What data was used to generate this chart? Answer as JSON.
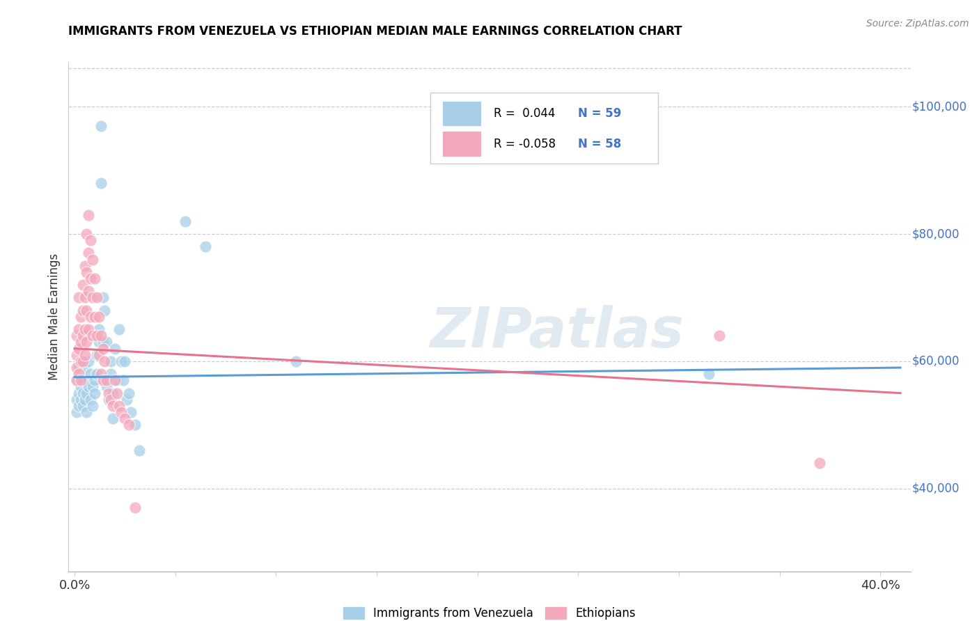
{
  "title": "IMMIGRANTS FROM VENEZUELA VS ETHIOPIAN MEDIAN MALE EARNINGS CORRELATION CHART",
  "source": "Source: ZipAtlas.com",
  "ylabel": "Median Male Earnings",
  "ylabel_right_ticks": [
    "$40,000",
    "$60,000",
    "$80,000",
    "$100,000"
  ],
  "ylabel_right_vals": [
    40000,
    60000,
    80000,
    100000
  ],
  "ylim": [
    27000,
    107000
  ],
  "xlim": [
    -0.003,
    0.415
  ],
  "legend_label1": "Immigrants from Venezuela",
  "legend_label2": "Ethiopians",
  "color_blue": "#a8cfe8",
  "color_pink": "#f4a8bb",
  "color_blue_line": "#5b9bd5",
  "color_pink_line": "#e8728a",
  "color_blue_text": "#4472c4",
  "watermark": "ZIPatlas",
  "scatter_venezuela": [
    [
      0.001,
      57000
    ],
    [
      0.001,
      54000
    ],
    [
      0.001,
      52000
    ],
    [
      0.002,
      59000
    ],
    [
      0.002,
      55000
    ],
    [
      0.002,
      57000
    ],
    [
      0.002,
      53000
    ],
    [
      0.003,
      56000
    ],
    [
      0.003,
      58000
    ],
    [
      0.003,
      54000
    ],
    [
      0.003,
      60000
    ],
    [
      0.004,
      55000
    ],
    [
      0.004,
      57000
    ],
    [
      0.004,
      53000
    ],
    [
      0.005,
      59000
    ],
    [
      0.005,
      54000
    ],
    [
      0.005,
      57000
    ],
    [
      0.006,
      55000
    ],
    [
      0.006,
      52000
    ],
    [
      0.007,
      60000
    ],
    [
      0.007,
      56000
    ],
    [
      0.008,
      58000
    ],
    [
      0.008,
      54000
    ],
    [
      0.009,
      56000
    ],
    [
      0.009,
      53000
    ],
    [
      0.01,
      57000
    ],
    [
      0.01,
      55000
    ],
    [
      0.011,
      61000
    ],
    [
      0.011,
      58000
    ],
    [
      0.012,
      65000
    ],
    [
      0.012,
      63000
    ],
    [
      0.013,
      97000
    ],
    [
      0.013,
      88000
    ],
    [
      0.014,
      70000
    ],
    [
      0.014,
      63000
    ],
    [
      0.015,
      68000
    ],
    [
      0.015,
      57000
    ],
    [
      0.016,
      63000
    ],
    [
      0.016,
      56000
    ],
    [
      0.017,
      54000
    ],
    [
      0.018,
      60000
    ],
    [
      0.018,
      58000
    ],
    [
      0.019,
      55000
    ],
    [
      0.019,
      51000
    ],
    [
      0.02,
      62000
    ],
    [
      0.021,
      57000
    ],
    [
      0.022,
      65000
    ],
    [
      0.023,
      60000
    ],
    [
      0.024,
      57000
    ],
    [
      0.025,
      60000
    ],
    [
      0.026,
      54000
    ],
    [
      0.027,
      55000
    ],
    [
      0.028,
      52000
    ],
    [
      0.03,
      50000
    ],
    [
      0.032,
      46000
    ],
    [
      0.055,
      82000
    ],
    [
      0.065,
      78000
    ],
    [
      0.11,
      60000
    ],
    [
      0.315,
      58000
    ]
  ],
  "scatter_ethiopian": [
    [
      0.001,
      64000
    ],
    [
      0.001,
      61000
    ],
    [
      0.001,
      59000
    ],
    [
      0.001,
      57000
    ],
    [
      0.002,
      70000
    ],
    [
      0.002,
      65000
    ],
    [
      0.002,
      62000
    ],
    [
      0.002,
      58000
    ],
    [
      0.003,
      67000
    ],
    [
      0.003,
      63000
    ],
    [
      0.003,
      60000
    ],
    [
      0.003,
      57000
    ],
    [
      0.004,
      72000
    ],
    [
      0.004,
      68000
    ],
    [
      0.004,
      64000
    ],
    [
      0.004,
      60000
    ],
    [
      0.005,
      75000
    ],
    [
      0.005,
      70000
    ],
    [
      0.005,
      65000
    ],
    [
      0.005,
      61000
    ],
    [
      0.006,
      80000
    ],
    [
      0.006,
      74000
    ],
    [
      0.006,
      68000
    ],
    [
      0.006,
      63000
    ],
    [
      0.007,
      83000
    ],
    [
      0.007,
      77000
    ],
    [
      0.007,
      71000
    ],
    [
      0.007,
      65000
    ],
    [
      0.008,
      79000
    ],
    [
      0.008,
      73000
    ],
    [
      0.008,
      67000
    ],
    [
      0.009,
      76000
    ],
    [
      0.009,
      70000
    ],
    [
      0.009,
      64000
    ],
    [
      0.01,
      73000
    ],
    [
      0.01,
      67000
    ],
    [
      0.011,
      70000
    ],
    [
      0.011,
      64000
    ],
    [
      0.012,
      67000
    ],
    [
      0.012,
      61000
    ],
    [
      0.013,
      64000
    ],
    [
      0.013,
      58000
    ],
    [
      0.014,
      62000
    ],
    [
      0.014,
      57000
    ],
    [
      0.015,
      60000
    ],
    [
      0.016,
      57000
    ],
    [
      0.017,
      55000
    ],
    [
      0.018,
      54000
    ],
    [
      0.019,
      53000
    ],
    [
      0.02,
      57000
    ],
    [
      0.021,
      55000
    ],
    [
      0.022,
      53000
    ],
    [
      0.023,
      52000
    ],
    [
      0.025,
      51000
    ],
    [
      0.027,
      50000
    ],
    [
      0.03,
      37000
    ],
    [
      0.32,
      64000
    ],
    [
      0.37,
      44000
    ]
  ],
  "ven_trend": [
    0.0,
    0.41,
    57500,
    59000
  ],
  "eth_trend": [
    0.0,
    0.41,
    62000,
    55000
  ]
}
